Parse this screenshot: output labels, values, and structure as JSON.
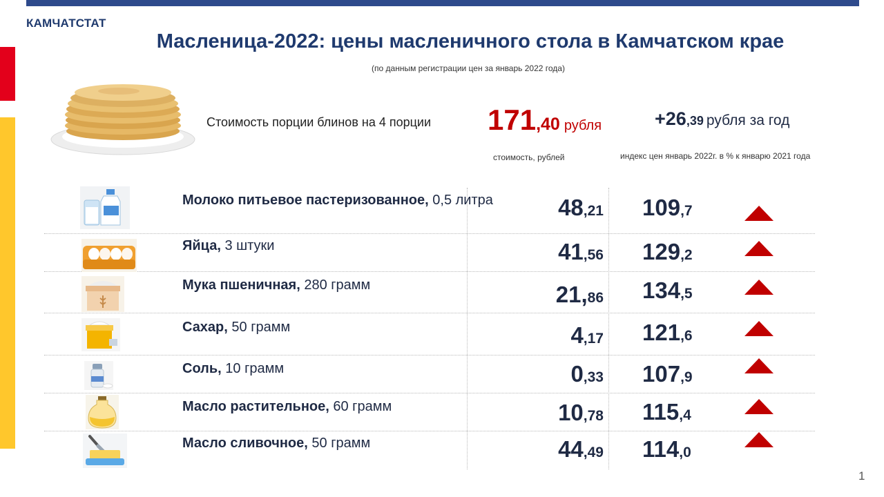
{
  "header": {
    "org": "КАМЧАТСТАТ",
    "title": "Масленица-2022: цены масленичного стола в Камчатском крае",
    "subtitle": "(по данным регистрации цен за январь 2022 года)"
  },
  "summary": {
    "portion_label": "Стоимость порции блинов на 4 порции",
    "total_int": "171",
    "total_dec": ",40",
    "total_unit": "рубля",
    "delta_int": "+26",
    "delta_dec": ",39",
    "delta_unit": "рубля за год",
    "col_cost_label": "стоимость, рублей",
    "col_index_label": "индекс цен  январь 2022г. в % к  январю 2021 года"
  },
  "items": [
    {
      "name_bold": "Молоко питьевое пастеризованное,",
      "name_rest": " 0,5 литра",
      "price_int": "48",
      "price_dec": ",21",
      "index_int": "109",
      "index_dec": ",7",
      "trend": "up",
      "icon": "milk-icon"
    },
    {
      "name_bold": "Яйца,",
      "name_rest": " 3 штуки",
      "price_int": "41",
      "price_dec": ",56",
      "index_int": "129",
      "index_dec": ",2",
      "trend": "up",
      "icon": "eggs-icon"
    },
    {
      "name_bold": "Мука пшеничная,",
      "name_rest": " 280 грамм",
      "price_int": "21,",
      "price_dec": "86",
      "index_int": "134",
      "index_dec": ",5",
      "trend": "up",
      "icon": "flour-icon"
    },
    {
      "name_bold": "Сахар,",
      "name_rest": " 50 грамм",
      "price_int": "4",
      "price_dec": ",17",
      "index_int": "121",
      "index_dec": ",6",
      "trend": "up",
      "icon": "sugar-icon"
    },
    {
      "name_bold": "Соль,",
      "name_rest": " 10 грамм",
      "price_int": "0",
      "price_dec": ",33",
      "index_int": "107",
      "index_dec": ",9",
      "trend": "up",
      "icon": "salt-icon"
    },
    {
      "name_bold": "Масло растительное,",
      "name_rest": " 60 грамм",
      "price_int": "10",
      "price_dec": ",78",
      "index_int": "115",
      "index_dec": ",4",
      "trend": "up",
      "icon": "oil-icon"
    },
    {
      "name_bold": "Масло сливочное,",
      "name_rest": " 50 грамм",
      "price_int": "44",
      "price_dec": ",49",
      "index_int": "114",
      "index_dec": ",0",
      "trend": "up",
      "icon": "butter-icon"
    }
  ],
  "page_number": "1",
  "colors": {
    "accent_red": "#c00000",
    "brand_blue": "#1f3a6e",
    "side_red": "#e3001b",
    "side_yellow": "#ffc72c"
  }
}
